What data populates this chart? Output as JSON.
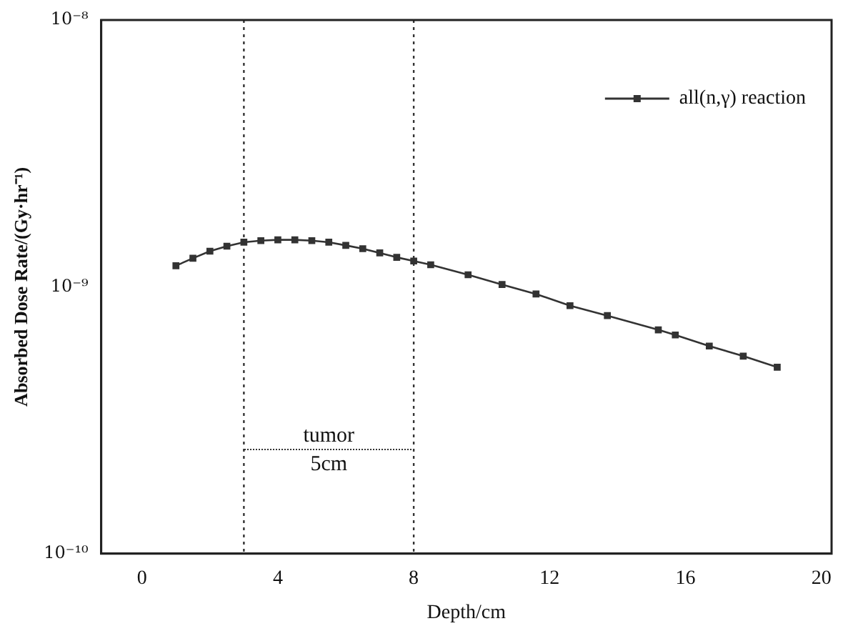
{
  "chart_data": {
    "type": "line",
    "xlabel": "Depth/cm",
    "ylabel": "Absorbed Dose Rate/(Gy·hr⁻¹)",
    "log": "y",
    "grid": false,
    "legend": "top right",
    "marker": "square",
    "line_style": "solid",
    "xlim": [
      -1.2,
      20.3
    ],
    "xticks": [
      0,
      4,
      8,
      12,
      16,
      20
    ],
    "ylim": [
      1e-10,
      1e-08
    ],
    "yticks": [
      {
        "value": 1e-10,
        "label": "10⁻¹⁰"
      },
      {
        "value": 1e-09,
        "label": "10⁻⁹"
      },
      {
        "value": 1e-08,
        "label": "10⁻⁸"
      }
    ],
    "series": [
      {
        "name": "all(n,γ) reaction",
        "color": "#333333",
        "x": [
          1,
          1.5,
          2,
          2.5,
          3,
          3.5,
          4,
          4.5,
          5,
          5.5,
          6,
          6.5,
          7,
          7.5,
          8,
          8.5,
          9.6,
          10.6,
          11.6,
          12.6,
          13.7,
          15.2,
          15.7,
          16.7,
          17.7,
          18.7
        ],
        "values": [
          1.2e-09,
          1.28e-09,
          1.36e-09,
          1.42e-09,
          1.47e-09,
          1.49e-09,
          1.5e-09,
          1.5e-09,
          1.49e-09,
          1.47e-09,
          1.43e-09,
          1.39e-09,
          1.34e-09,
          1.29e-09,
          1.25e-09,
          1.21e-09,
          1.11e-09,
          1.02e-09,
          9.4e-10,
          8.5e-10,
          7.8e-10,
          6.9e-10,
          6.6e-10,
          6e-10,
          5.5e-10,
          5e-10
        ]
      }
    ],
    "ref_lines": [
      {
        "axis": "x",
        "value": 3,
        "line_style": "dotted",
        "color": "#333333"
      },
      {
        "axis": "x",
        "value": 8,
        "line_style": "dotted",
        "color": "#333333"
      }
    ],
    "annotations": [
      "tumor",
      "5cm"
    ]
  }
}
